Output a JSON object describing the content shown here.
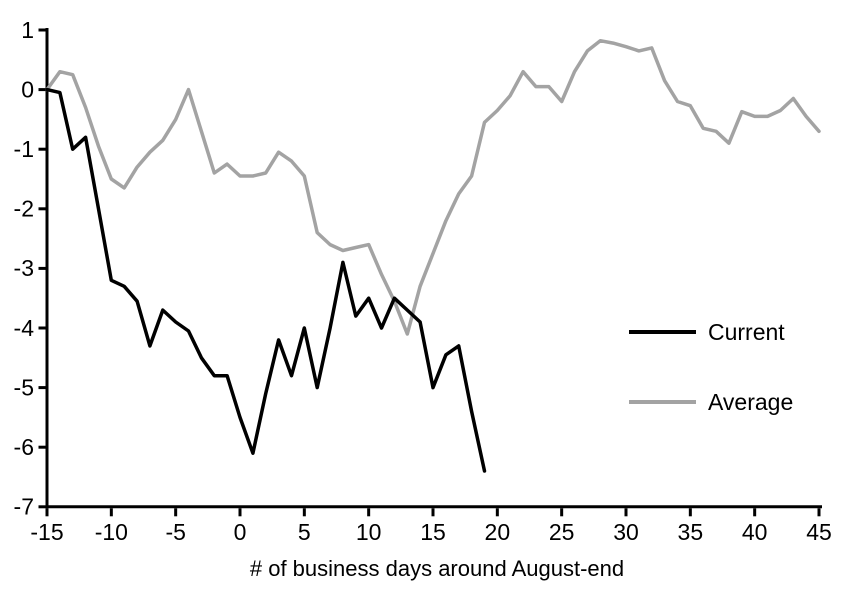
{
  "chart_data": {
    "type": "line",
    "title": "",
    "xlabel": "# of business days around August-end",
    "ylabel": "",
    "xlim": [
      -15,
      45
    ],
    "ylim": [
      -7,
      1
    ],
    "grid": false,
    "legend_position": "middle-right",
    "x_ticks": [
      -15,
      -10,
      -5,
      0,
      5,
      10,
      15,
      20,
      25,
      30,
      35,
      40,
      45
    ],
    "y_ticks": [
      1,
      0,
      -1,
      -2,
      -3,
      -4,
      -5,
      -6,
      -7
    ],
    "series": [
      {
        "name": "Current",
        "color": "#000000",
        "x": [
          -15,
          -14,
          -13,
          -12,
          -11,
          -10,
          -9,
          -8,
          -7,
          -6,
          -5,
          -4,
          -3,
          -2,
          -1,
          0,
          1,
          2,
          3,
          4,
          5,
          6,
          7,
          8,
          9,
          10,
          11,
          12,
          13,
          14,
          15,
          16,
          17,
          18,
          19
        ],
        "values": [
          0,
          -0.05,
          -1.0,
          -0.8,
          -2.0,
          -3.2,
          -3.3,
          -3.55,
          -4.3,
          -3.7,
          -3.9,
          -4.05,
          -4.5,
          -4.8,
          -4.8,
          -5.5,
          -6.1,
          -5.1,
          -4.2,
          -4.8,
          -4.0,
          -5.0,
          -4.0,
          -2.9,
          -3.8,
          -3.5,
          -4.0,
          -3.5,
          -3.7,
          -3.9,
          -5.0,
          -4.45,
          -4.3,
          -5.4,
          -6.4
        ]
      },
      {
        "name": "Average",
        "color": "#a3a3a3",
        "x": [
          -15,
          -14,
          -13,
          -12,
          -11,
          -10,
          -9,
          -8,
          -7,
          -6,
          -5,
          -4,
          -3,
          -2,
          -1,
          0,
          1,
          2,
          3,
          4,
          5,
          6,
          7,
          8,
          9,
          10,
          11,
          12,
          13,
          14,
          15,
          16,
          17,
          18,
          19,
          20,
          21,
          22,
          23,
          24,
          25,
          26,
          27,
          28,
          29,
          30,
          31,
          32,
          33,
          34,
          35,
          36,
          37,
          38,
          39,
          40,
          41,
          42,
          43,
          44,
          45
        ],
        "values": [
          0,
          0.3,
          0.25,
          -0.3,
          -0.95,
          -1.5,
          -1.65,
          -1.3,
          -1.05,
          -0.85,
          -0.5,
          0.0,
          -0.7,
          -1.4,
          -1.25,
          -1.45,
          -1.45,
          -1.4,
          -1.05,
          -1.2,
          -1.45,
          -2.4,
          -2.6,
          -2.7,
          -2.65,
          -2.6,
          -3.1,
          -3.55,
          -4.1,
          -3.3,
          -2.75,
          -2.2,
          -1.75,
          -1.45,
          -0.55,
          -0.35,
          -0.1,
          0.3,
          0.05,
          0.05,
          -0.2,
          0.3,
          0.65,
          0.82,
          0.78,
          0.72,
          0.65,
          0.7,
          0.15,
          -0.2,
          -0.27,
          -0.65,
          -0.7,
          -0.9,
          -0.37,
          -0.45,
          -0.45,
          -0.35,
          -0.15,
          -0.45,
          -0.7
        ]
      }
    ]
  },
  "legend": {
    "current_label": "Current",
    "average_label": "Average"
  },
  "colors": {
    "current": "#000000",
    "average": "#a3a3a3",
    "axis": "#000000",
    "background": "#ffffff"
  }
}
